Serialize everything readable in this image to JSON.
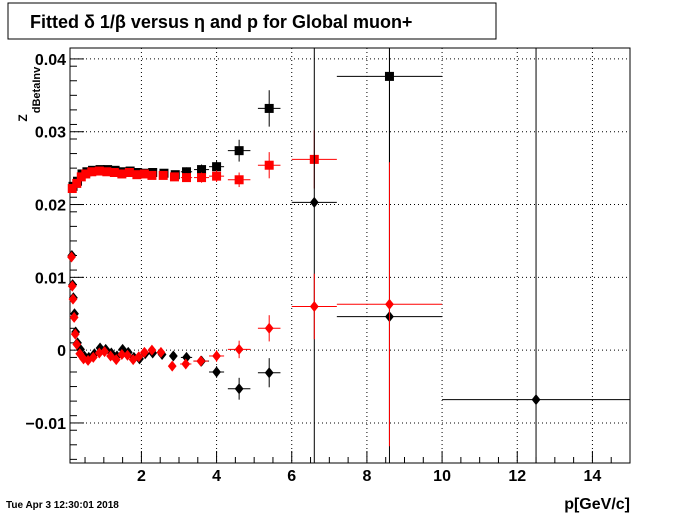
{
  "chart_data": {
    "type": "scatter",
    "title": "Fitted δ 1/β versus η and p for Global muon+",
    "xlabel": "p[GeV/c]",
    "ylabel_main": "Z",
    "ylabel_sub": "dBetaInv",
    "xlim": [
      0.1,
      15
    ],
    "ylim": [
      -0.0155,
      0.0415
    ],
    "x_ticks": [
      2,
      4,
      6,
      8,
      10,
      12,
      14
    ],
    "x_tick_labels": [
      "2",
      "4",
      "6",
      "8",
      "10",
      "12",
      "14"
    ],
    "y_ticks": [
      -0.01,
      0,
      0.01,
      0.02,
      0.03,
      0.04
    ],
    "y_tick_labels": [
      "−0.01",
      "0",
      "0.01",
      "0.02",
      "0.03",
      "0.04"
    ],
    "grid": true,
    "timestamp": "Tue Apr  3 12:30:01 2018",
    "series": [
      {
        "marker": "square",
        "color": "#000000",
        "points": [
          [
            0.18,
            0.0225,
            0.02,
            0.0006
          ],
          [
            0.3,
            0.0232,
            0.02,
            0.0005
          ],
          [
            0.42,
            0.0242,
            0.02,
            0.0005
          ],
          [
            0.55,
            0.0245,
            0.02,
            0.0004
          ],
          [
            0.7,
            0.0247,
            0.03,
            0.0004
          ],
          [
            0.9,
            0.0248,
            0.03,
            0.0004
          ],
          [
            1.1,
            0.0248,
            0.05,
            0.0004
          ],
          [
            1.3,
            0.0247,
            0.05,
            0.0004
          ],
          [
            1.5,
            0.0245,
            0.05,
            0.0004
          ],
          [
            1.7,
            0.0246,
            0.05,
            0.0004
          ],
          [
            1.9,
            0.0244,
            0.05,
            0.0004
          ],
          [
            2.1,
            0.0243,
            0.05,
            0.0004
          ],
          [
            2.3,
            0.0244,
            0.05,
            0.0005
          ],
          [
            2.6,
            0.0243,
            0.1,
            0.0005
          ],
          [
            2.9,
            0.0241,
            0.1,
            0.0005
          ],
          [
            3.2,
            0.0245,
            0.15,
            0.0006
          ],
          [
            3.6,
            0.0248,
            0.2,
            0.0007
          ],
          [
            4.0,
            0.0252,
            0.2,
            0.0008
          ],
          [
            4.6,
            0.0274,
            0.3,
            0.0015
          ],
          [
            5.4,
            0.0332,
            0.3,
            0.0025
          ],
          [
            8.6,
            0.0376,
            1.4,
            0.05
          ]
        ]
      },
      {
        "marker": "square",
        "color": "#ff0000",
        "points": [
          [
            0.16,
            0.0222,
            0.02,
            0.0006
          ],
          [
            0.28,
            0.0229,
            0.02,
            0.0005
          ],
          [
            0.4,
            0.0238,
            0.02,
            0.0005
          ],
          [
            0.52,
            0.0242,
            0.02,
            0.0004
          ],
          [
            0.68,
            0.0245,
            0.03,
            0.0004
          ],
          [
            0.88,
            0.0246,
            0.03,
            0.0004
          ],
          [
            1.08,
            0.0245,
            0.05,
            0.0004
          ],
          [
            1.28,
            0.0244,
            0.05,
            0.0004
          ],
          [
            1.48,
            0.0242,
            0.05,
            0.0004
          ],
          [
            1.68,
            0.0244,
            0.05,
            0.0004
          ],
          [
            1.88,
            0.0241,
            0.05,
            0.0004
          ],
          [
            2.08,
            0.0242,
            0.05,
            0.0004
          ],
          [
            2.28,
            0.024,
            0.05,
            0.0005
          ],
          [
            2.58,
            0.024,
            0.1,
            0.0005
          ],
          [
            2.88,
            0.0238,
            0.1,
            0.0005
          ],
          [
            3.2,
            0.0237,
            0.15,
            0.0006
          ],
          [
            3.6,
            0.0237,
            0.2,
            0.0007
          ],
          [
            4.0,
            0.0239,
            0.2,
            0.0008
          ],
          [
            4.6,
            0.0234,
            0.3,
            0.001
          ],
          [
            5.4,
            0.0254,
            0.3,
            0.0018
          ],
          [
            6.6,
            0.0262,
            0.6,
            0.004
          ]
        ]
      },
      {
        "marker": "diamond",
        "color": "#000000",
        "points": [
          [
            0.15,
            0.013,
            0.02,
            0.0006
          ],
          [
            0.17,
            0.009,
            0.02,
            0.0006
          ],
          [
            0.19,
            0.0072,
            0.02,
            0.0005
          ],
          [
            0.22,
            0.005,
            0.02,
            0.0005
          ],
          [
            0.25,
            0.0025,
            0.02,
            0.0004
          ],
          [
            0.3,
            0.001,
            0.02,
            0.0004
          ],
          [
            0.38,
            0.0001,
            0.02,
            0.0004
          ],
          [
            0.48,
            -0.0008,
            0.02,
            0.0004
          ],
          [
            0.6,
            -0.001,
            0.03,
            0.0004
          ],
          [
            0.75,
            -0.0005,
            0.03,
            0.0004
          ],
          [
            0.9,
            0.0003,
            0.03,
            0.0004
          ],
          [
            1.05,
            0.0001,
            0.04,
            0.0004
          ],
          [
            1.2,
            -0.0004,
            0.04,
            0.0004
          ],
          [
            1.35,
            -0.0008,
            0.04,
            0.0004
          ],
          [
            1.5,
            0.0001,
            0.05,
            0.0004
          ],
          [
            1.65,
            -0.0003,
            0.05,
            0.0004
          ],
          [
            1.8,
            -0.001,
            0.05,
            0.0004
          ],
          [
            1.95,
            -0.0012,
            0.05,
            0.0005
          ],
          [
            2.1,
            -0.0005,
            0.05,
            0.0005
          ],
          [
            2.3,
            -0.0004,
            0.05,
            0.0005
          ],
          [
            2.55,
            -0.0006,
            0.1,
            0.0005
          ],
          [
            2.85,
            -0.0008,
            0.1,
            0.0005
          ],
          [
            3.2,
            -0.001,
            0.15,
            0.0006
          ],
          [
            3.6,
            -0.0015,
            0.2,
            0.0007
          ],
          [
            4.0,
            -0.003,
            0.2,
            0.0008
          ],
          [
            4.6,
            -0.0053,
            0.3,
            0.0015
          ],
          [
            5.4,
            -0.0031,
            0.3,
            0.002
          ],
          [
            6.6,
            0.0203,
            0.6,
            0.06
          ],
          [
            8.6,
            0.0046,
            1.4,
            0.06
          ],
          [
            12.5,
            -0.0068,
            2.5,
            0.06
          ]
        ]
      },
      {
        "marker": "diamond",
        "color": "#ff0000",
        "points": [
          [
            0.14,
            0.0128,
            0.02,
            0.0006
          ],
          [
            0.16,
            0.0088,
            0.02,
            0.0006
          ],
          [
            0.18,
            0.007,
            0.02,
            0.0005
          ],
          [
            0.21,
            0.0045,
            0.02,
            0.0005
          ],
          [
            0.24,
            0.0022,
            0.02,
            0.0004
          ],
          [
            0.28,
            0.0008,
            0.02,
            0.0004
          ],
          [
            0.36,
            -0.0005,
            0.02,
            0.0004
          ],
          [
            0.46,
            -0.0012,
            0.02,
            0.0004
          ],
          [
            0.58,
            -0.0014,
            0.03,
            0.0004
          ],
          [
            0.72,
            -0.001,
            0.03,
            0.0004
          ],
          [
            0.88,
            -0.0004,
            0.03,
            0.0004
          ],
          [
            1.02,
            -0.0002,
            0.04,
            0.0004
          ],
          [
            1.18,
            -0.0008,
            0.04,
            0.0004
          ],
          [
            1.33,
            -0.0013,
            0.04,
            0.0004
          ],
          [
            1.48,
            -0.0006,
            0.05,
            0.0004
          ],
          [
            1.63,
            -0.0007,
            0.05,
            0.0004
          ],
          [
            1.78,
            -0.0013,
            0.05,
            0.0004
          ],
          [
            1.93,
            -0.0009,
            0.05,
            0.0005
          ],
          [
            2.08,
            -0.0003,
            0.05,
            0.0005
          ],
          [
            2.28,
            0.0,
            0.05,
            0.0005
          ],
          [
            2.52,
            -0.0003,
            0.1,
            0.0005
          ],
          [
            2.82,
            -0.0022,
            0.1,
            0.0005
          ],
          [
            3.18,
            -0.0019,
            0.15,
            0.0006
          ],
          [
            3.58,
            -0.0015,
            0.2,
            0.0007
          ],
          [
            4.0,
            -0.0008,
            0.2,
            0.0008
          ],
          [
            4.6,
            0.0001,
            0.3,
            0.0012
          ],
          [
            5.4,
            0.003,
            0.3,
            0.0018
          ],
          [
            6.6,
            0.006,
            0.6,
            0.0045
          ],
          [
            8.6,
            0.0063,
            1.4,
            0.0195
          ]
        ]
      }
    ]
  }
}
